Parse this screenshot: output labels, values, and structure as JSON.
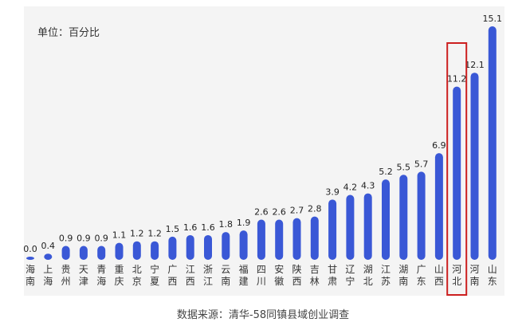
{
  "unit_label": "单位：百分比",
  "source_label": "数据来源：清华-58同镇县域创业调查",
  "colors": {
    "bar": "#3a58d6",
    "highlight_box": "#cc1f1f",
    "panel": "#f4f4f4"
  },
  "chart_data": {
    "type": "bar",
    "categories": [
      "海南",
      "上海",
      "贵州",
      "天津",
      "青海",
      "重庆",
      "北京",
      "宁夏",
      "广西",
      "江西",
      "浙江",
      "云南",
      "福建",
      "四川",
      "安徽",
      "陕西",
      "吉林",
      "甘肃",
      "辽宁",
      "湖北",
      "江苏",
      "湖南",
      "广东",
      "山西",
      "河北",
      "河南",
      "山东"
    ],
    "values": [
      0.0,
      0.4,
      0.9,
      0.9,
      0.9,
      1.1,
      1.2,
      1.2,
      1.5,
      1.6,
      1.6,
      1.8,
      1.9,
      2.6,
      2.6,
      2.7,
      2.8,
      3.9,
      4.2,
      4.3,
      5.2,
      5.5,
      5.7,
      6.9,
      11.2,
      12.1,
      15.1
    ],
    "value_labels": [
      "0.0",
      "0.4",
      "0.9",
      "0.9",
      "0.9",
      "1.1",
      "1.2",
      "1.2",
      "1.5",
      "1.6",
      "1.6",
      "1.8",
      "1.9",
      "2.6",
      "2.6",
      "2.7",
      "2.8",
      "3.9",
      "4.2",
      "4.3",
      "5.2",
      "5.5",
      "5.7",
      "6.9",
      "11.2",
      "12.1",
      "15.1"
    ],
    "highlighted_category": "河北",
    "ylim": [
      0,
      15.1
    ]
  }
}
